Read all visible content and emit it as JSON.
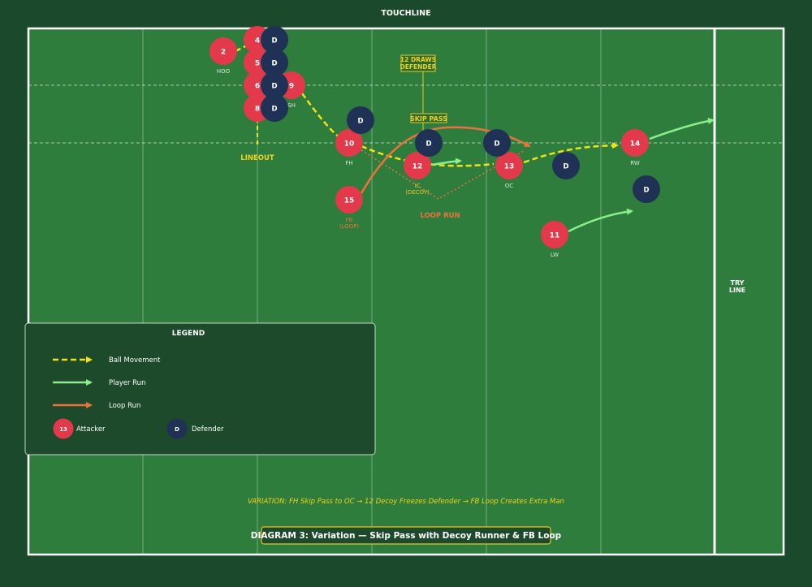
{
  "labels": {
    "touchline": "TOUCHLINE",
    "try_line_1": "TRY",
    "try_line_2": "LINE",
    "lineout": "LINEOUT",
    "skip_pass": "SKIP PASS",
    "draws_defender_1": "12 DRAWS",
    "draws_defender_2": "DEFENDER",
    "loop_run": "LOOP RUN",
    "variation": "VARIATION: FH Skip Pass to OC → 12 Decoy Freezes Defender → FB Loop Creates Extra Man",
    "title": "DIAGRAM 3: Variation — Skip Pass with Decoy Runner & FB Loop"
  },
  "legend": {
    "title": "LEGEND",
    "ball_movement": "Ball Movement",
    "player_run": "Player Run",
    "loop_run": "Loop Run",
    "attacker_sample": "13",
    "attacker": "Attacker",
    "defender_sample": "D",
    "defender": "Defender"
  },
  "colors": {
    "field": "#2e7d3c",
    "background": "#1a4a2b",
    "attacker": "#e23a4b",
    "defender": "#1f3154",
    "ball": "#f2e21a",
    "run": "#8cf08a",
    "loop": "#e8733c",
    "accent_text": "#f2d21a"
  },
  "attackers": [
    {
      "num": "4",
      "role": ""
    },
    {
      "num": "5",
      "role": ""
    },
    {
      "num": "6",
      "role": ""
    },
    {
      "num": "8",
      "role": ""
    },
    {
      "num": "2",
      "role": "HOO"
    },
    {
      "num": "9",
      "role": "SH"
    },
    {
      "num": "10",
      "role": "FH"
    },
    {
      "num": "12",
      "role": "IC",
      "role2": "(DECOY)"
    },
    {
      "num": "13",
      "role": "OC"
    },
    {
      "num": "15",
      "role": "FB",
      "role2": "(LOOP)"
    },
    {
      "num": "14",
      "role": "RW"
    },
    {
      "num": "11",
      "role": "LW"
    }
  ],
  "defenders": [
    {
      "label": "D"
    },
    {
      "label": "D"
    },
    {
      "label": "D"
    },
    {
      "label": "D"
    },
    {
      "label": "D"
    },
    {
      "label": "D"
    },
    {
      "label": "D"
    },
    {
      "label": "D"
    },
    {
      "label": "D"
    }
  ]
}
